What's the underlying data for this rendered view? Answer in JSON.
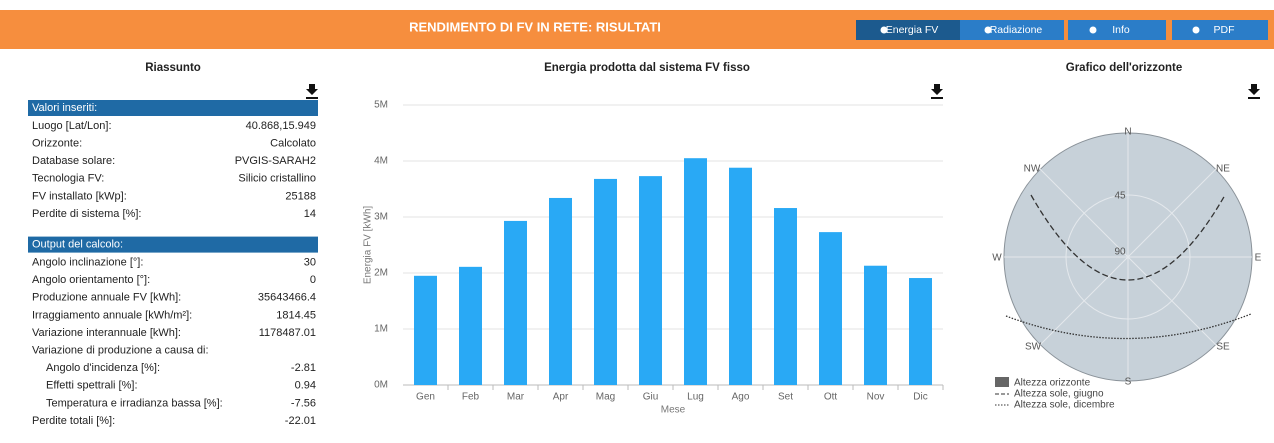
{
  "header": {
    "title": "RENDIMENTO DI FV IN RETE: RISULTATI",
    "buttons": [
      "Energia FV",
      "Radiazione",
      "Info",
      "PDF"
    ]
  },
  "summary": {
    "title": "Riassunto",
    "sections": [
      {
        "heading": "Valori inseriti:",
        "rows": [
          [
            "Luogo [Lat/Lon]:",
            "40.868,15.949"
          ],
          [
            "Orizzonte:",
            "Calcolato"
          ],
          [
            "Database solare:",
            "PVGIS-SARAH2"
          ],
          [
            "Tecnologia FV:",
            "Silicio cristallino"
          ],
          [
            "FV installato [kWp]:",
            "25188"
          ],
          [
            "Perdite di sistema [%]:",
            "14"
          ]
        ]
      },
      {
        "heading": "Output del calcolo:",
        "rows": [
          [
            "Angolo inclinazione [°]:",
            "30"
          ],
          [
            "Angolo orientamento [°]:",
            "0"
          ],
          [
            "Produzione annuale FV [kWh]:",
            "35643466.4"
          ],
          [
            "Irraggiamento annuale [kWh/m²]:",
            "1814.45"
          ],
          [
            "Variazione interannuale [kWh]:",
            "1178487.01"
          ],
          {
            "label": "Variazione di produzione a causa di:",
            "rows": [
              [
                "Angolo d'incidenza [%]:",
                "-2.81"
              ],
              [
                "Effetti spettrali [%]:",
                "0.94"
              ],
              [
                "Temperatura e irradianza bassa [%]:",
                "-7.56"
              ]
            ]
          },
          [
            "Perdite totali [%]:",
            "-22.01"
          ]
        ]
      }
    ]
  },
  "chart_data": {
    "type": "bar",
    "title": "Energia prodotta dal sistema FV fisso",
    "x_label": "Mese",
    "y_label": "Energia FV [kWh]",
    "categories": [
      "Gen",
      "Feb",
      "Mar",
      "Apr",
      "Mag",
      "Giu",
      "Lug",
      "Ago",
      "Set",
      "Ott",
      "Nov",
      "Dic"
    ],
    "values": [
      1950000,
      2110000,
      2930000,
      3340000,
      3680000,
      3730000,
      4050000,
      3880000,
      3160000,
      2730000,
      2130000,
      1910000
    ],
    "color": "#29a9f5",
    "ylim": [
      0,
      5000000
    ],
    "yticks": [
      {
        "value": 0,
        "label": "0M"
      },
      {
        "value": 1000000,
        "label": "1M"
      },
      {
        "value": 2000000,
        "label": "2M"
      },
      {
        "value": 3000000,
        "label": "3M"
      },
      {
        "value": 4000000,
        "label": "4M"
      },
      {
        "value": 5000000,
        "label": "5M"
      }
    ],
    "grid": true
  },
  "horizon": {
    "title": "Grafico dell'orizzonte",
    "compass": [
      {
        "label": "N"
      },
      {
        "label": "NE"
      },
      {
        "label": "E"
      },
      {
        "label": "SE"
      },
      {
        "label": "S"
      },
      {
        "label": "SW"
      },
      {
        "label": "W"
      },
      {
        "label": "NW"
      }
    ],
    "rings": [
      "45",
      "90"
    ],
    "legend": [
      "Altezza orizzonte",
      "Altezza sole, giugno",
      "Altezza sole, dicembre"
    ]
  }
}
